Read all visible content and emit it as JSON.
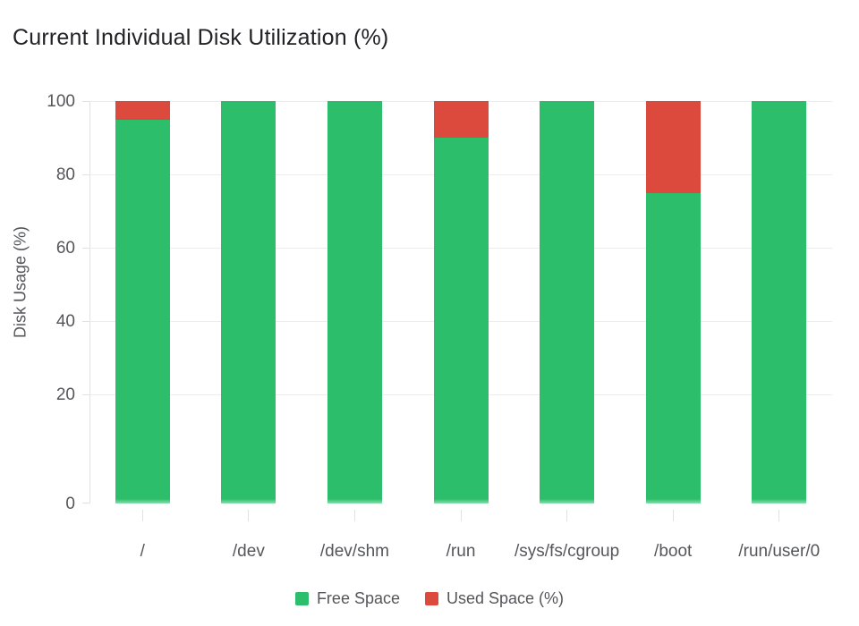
{
  "title": "Current Individual Disk Utilization (%)",
  "colors": {
    "free": "#2dbe6c",
    "free_fade": "#8adfad",
    "used": "#db4a3c",
    "gridline": "#ededed",
    "axis": "#e2e2e2",
    "muted_text": "#55565a",
    "title_text": "#212225"
  },
  "chart_data": {
    "type": "bar",
    "stacked": true,
    "title": "Current Individual Disk Utilization (%)",
    "xlabel": "",
    "ylabel": "Disk Usage (%)",
    "ylim": [
      0,
      100
    ],
    "yticks": [
      100,
      80,
      60,
      40,
      20,
      0
    ],
    "grid": true,
    "legend_position": "bottom",
    "categories": [
      "/",
      "/dev",
      "/dev/shm",
      "/run",
      "/sys/fs/cgroup",
      "/boot",
      "/run/user/0"
    ],
    "series": [
      {
        "name": "Free Space",
        "color": "#2dbe6c",
        "values": [
          95,
          100,
          100,
          90,
          100,
          75,
          100
        ]
      },
      {
        "name": "Used Space (%)",
        "color": "#db4a3c",
        "values": [
          5,
          0,
          0,
          10,
          0,
          25,
          0
        ]
      }
    ]
  },
  "legend": [
    {
      "label": "Free Space",
      "color": "#2dbe6c"
    },
    {
      "label": "Used Space (%)",
      "color": "#db4a3c"
    }
  ]
}
